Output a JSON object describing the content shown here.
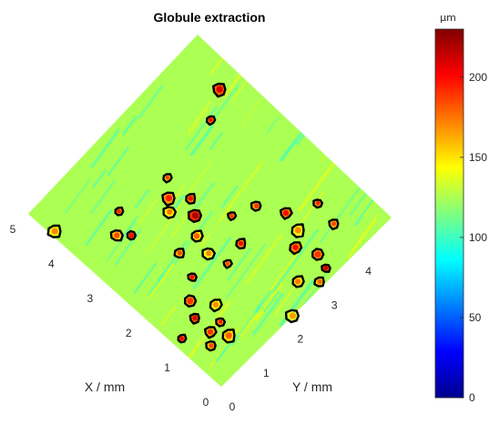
{
  "chart_data": {
    "type": "heatmap",
    "title": "Globule extraction",
    "xlabel": "X / mm",
    "ylabel": "Y / mm",
    "xlim": [
      0,
      5
    ],
    "ylim": [
      0,
      5
    ],
    "x_ticks": [
      "0",
      "1",
      "2",
      "3",
      "4",
      "5"
    ],
    "y_ticks": [
      "0",
      "1",
      "2",
      "3",
      "4"
    ],
    "colorbar": {
      "unit": "μm",
      "range": [
        0,
        230
      ],
      "ticks": [
        "0",
        "50",
        "100",
        "150",
        "200"
      ],
      "colormap": "jet"
    },
    "surface_base_level": 125,
    "globules": [
      {
        "x": 1.2,
        "y": 0.2,
        "h": 205
      },
      {
        "x": 0.7,
        "y": 0.5,
        "h": 185
      },
      {
        "x": 0.9,
        "y": 0.7,
        "h": 190
      },
      {
        "x": 0.6,
        "y": 0.9,
        "h": 180
      },
      {
        "x": 0.9,
        "y": 1.0,
        "h": 195
      },
      {
        "x": 1.3,
        "y": 0.7,
        "h": 210
      },
      {
        "x": 1.2,
        "y": 1.2,
        "h": 170
      },
      {
        "x": 1.6,
        "y": 0.9,
        "h": 190
      },
      {
        "x": 1.9,
        "y": 1.3,
        "h": 200
      },
      {
        "x": 2.4,
        "y": 1.5,
        "h": 185
      },
      {
        "x": 2.4,
        "y": 2.0,
        "h": 180
      },
      {
        "x": 2.7,
        "y": 2.3,
        "h": 220
      },
      {
        "x": 2.2,
        "y": 2.8,
        "h": 190
      },
      {
        "x": 3.0,
        "y": 2.5,
        "h": 200
      },
      {
        "x": 3.1,
        "y": 2.0,
        "h": 175
      },
      {
        "x": 3.3,
        "y": 2.2,
        "h": 195
      },
      {
        "x": 3.6,
        "y": 2.5,
        "h": 185
      },
      {
        "x": 3.3,
        "y": 1.1,
        "h": 200
      },
      {
        "x": 3.5,
        "y": 0.9,
        "h": 185
      },
      {
        "x": 4.4,
        "y": 0.1,
        "h": 170
      },
      {
        "x": 3.8,
        "y": 1.3,
        "h": 195
      },
      {
        "x": 2.0,
        "y": 3.3,
        "h": 190
      },
      {
        "x": 1.5,
        "y": 3.6,
        "h": 200
      },
      {
        "x": 1.1,
        "y": 3.5,
        "h": 170
      },
      {
        "x": 1.2,
        "y": 4.2,
        "h": 195
      },
      {
        "x": 0.7,
        "y": 4.1,
        "h": 185
      },
      {
        "x": 0.9,
        "y": 3.2,
        "h": 200
      },
      {
        "x": 0.5,
        "y": 3.4,
        "h": 190
      },
      {
        "x": 0.2,
        "y": 3.3,
        "h": 215
      },
      {
        "x": 0.1,
        "y": 3.0,
        "h": 180
      },
      {
        "x": 0.4,
        "y": 2.7,
        "h": 175
      },
      {
        "x": 0.0,
        "y": 2.1,
        "h": 165
      },
      {
        "x": 1.6,
        "y": 2.0,
        "h": 185
      },
      {
        "x": 1.7,
        "y": 2.5,
        "h": 200
      },
      {
        "x": 2.0,
        "y": 1.9,
        "h": 170
      },
      {
        "x": 4.1,
        "y": 4.6,
        "h": 210
      },
      {
        "x": 3.8,
        "y": 4.0,
        "h": 200
      }
    ]
  }
}
